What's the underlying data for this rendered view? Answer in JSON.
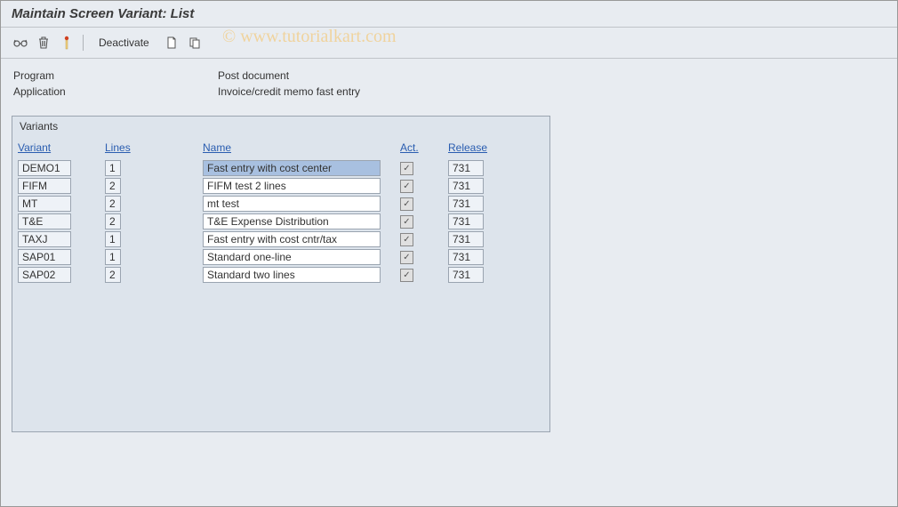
{
  "title": "Maintain Screen Variant: List",
  "watermark": "© www.tutorialkart.com",
  "toolbar": {
    "deactivate_label": "Deactivate"
  },
  "info": {
    "program_label": "Program",
    "program_value": "Post document",
    "application_label": "Application",
    "application_value": "Invoice/credit memo fast entry"
  },
  "panel": {
    "title": "Variants",
    "columns": {
      "variant": "Variant",
      "lines": "Lines",
      "name": "Name",
      "act": "Act.",
      "release": "Release"
    },
    "rows": [
      {
        "variant": "DEMO1",
        "lines": "1",
        "name": "Fast entry with cost center",
        "act": true,
        "release": "731",
        "selected": true
      },
      {
        "variant": "FIFM",
        "lines": "2",
        "name": "FIFM test 2 lines",
        "act": true,
        "release": "731",
        "selected": false
      },
      {
        "variant": "MT",
        "lines": "2",
        "name": "mt test",
        "act": true,
        "release": "731",
        "selected": false
      },
      {
        "variant": "T&E",
        "lines": "2",
        "name": "T&E Expense Distribution",
        "act": true,
        "release": "731",
        "selected": false
      },
      {
        "variant": "TAXJ",
        "lines": "1",
        "name": "Fast entry with cost cntr/tax",
        "act": true,
        "release": "731",
        "selected": false
      },
      {
        "variant": "SAP01",
        "lines": "1",
        "name": "Standard one-line",
        "act": true,
        "release": "731",
        "selected": false
      },
      {
        "variant": "SAP02",
        "lines": "2",
        "name": "Standard two lines",
        "act": true,
        "release": "731",
        "selected": false
      }
    ]
  },
  "colors": {
    "background": "#e8ecf1",
    "panel_bg": "#dde4ec",
    "border": "#9aa4b0",
    "link": "#2a5db0",
    "input_bg": "#eef2f7",
    "input_white": "#ffffff",
    "input_selected": "#a8c0e0"
  }
}
